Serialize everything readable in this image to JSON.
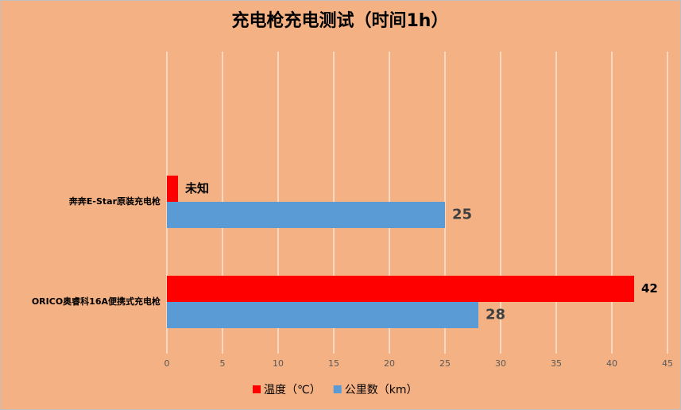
{
  "chart_data": {
    "type": "hbar",
    "title": "充电枪充电测试（时间1h）",
    "categories": [
      "奔奔E-Star原装充电枪",
      "ORICO奥睿科16A便携式充电枪"
    ],
    "series": [
      {
        "name": "温度（℃）",
        "color": "#ff0000",
        "values": [
          1,
          42
        ],
        "value_labels": [
          "未知",
          "42"
        ]
      },
      {
        "name": "公里数（km）",
        "color": "#5b9bd5",
        "values": [
          25,
          28
        ]
      }
    ],
    "xlim": [
      0,
      45
    ],
    "xticks": [
      0,
      5,
      10,
      15,
      20,
      25,
      30,
      35,
      40,
      45
    ],
    "grid": true,
    "legend": "bottom"
  }
}
